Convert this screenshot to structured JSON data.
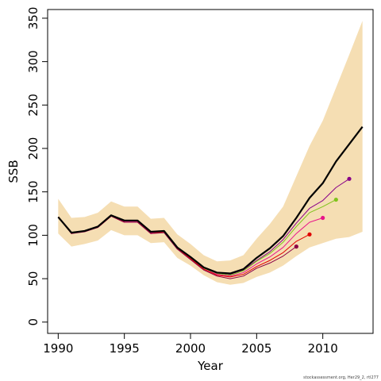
{
  "chart_data": {
    "type": "line",
    "title": "",
    "xlabel": "Year",
    "ylabel": "SSB",
    "xlim": [
      1989.2,
      2013.8
    ],
    "ylim": [
      -13,
      360
    ],
    "x_ticks": [
      1990,
      1995,
      2000,
      2005,
      2010
    ],
    "y_ticks": [
      0,
      50,
      100,
      150,
      200,
      250,
      300,
      350
    ],
    "grid": false,
    "legend": "none",
    "credit": "stockassessment.org, Her29_2, rtl277",
    "band": {
      "color": "#f5deb3",
      "x": [
        1990,
        1991,
        1992,
        1993,
        1994,
        1995,
        1996,
        1997,
        1998,
        1999,
        2000,
        2001,
        2002,
        2003,
        2004,
        2005,
        2006,
        2007,
        2008,
        2009,
        2010,
        2011,
        2012,
        2013
      ],
      "upper": [
        142,
        120,
        121,
        126,
        139,
        133,
        133,
        119,
        120,
        101,
        90,
        77,
        70,
        71,
        77,
        96,
        113,
        133,
        168,
        203,
        232,
        270,
        308,
        347
      ],
      "lower": [
        102,
        87,
        90,
        94,
        106,
        100,
        100,
        91,
        92,
        74,
        65,
        54,
        46,
        43,
        45,
        52,
        57,
        65,
        76,
        86,
        91,
        96,
        98,
        104
      ]
    },
    "series": [
      {
        "color": "#000000",
        "width": 2.2,
        "end_marker": false,
        "x": [
          1990,
          1991,
          1992,
          1993,
          1994,
          1995,
          1996,
          1997,
          1998,
          1999,
          2000,
          2001,
          2002,
          2003,
          2004,
          2005,
          2006,
          2007,
          2008,
          2009,
          2010,
          2011,
          2012,
          2013
        ],
        "values": [
          121,
          103,
          105,
          110,
          123,
          117,
          117,
          104,
          105,
          86,
          75,
          63,
          57,
          56,
          61,
          74,
          85,
          99,
          120,
          143,
          160,
          185,
          205,
          225
        ]
      },
      {
        "color": "#880088",
        "width": 1,
        "end_marker": true,
        "x": [
          1990,
          1991,
          1992,
          1993,
          1994,
          1995,
          1996,
          1997,
          1998,
          1999,
          2000,
          2001,
          2002,
          2003,
          2004,
          2005,
          2006,
          2007,
          2008,
          2009,
          2010,
          2011,
          2012
        ],
        "values": [
          121,
          103,
          105,
          110,
          123,
          117,
          117,
          104,
          105,
          86,
          74,
          63,
          57,
          55,
          60,
          71,
          81,
          95,
          114,
          131,
          140,
          155,
          165
        ]
      },
      {
        "color": "#7fc31c",
        "width": 1,
        "end_marker": true,
        "x": [
          1990,
          1991,
          1992,
          1993,
          1994,
          1995,
          1996,
          1997,
          1998,
          1999,
          2000,
          2001,
          2002,
          2003,
          2004,
          2005,
          2006,
          2007,
          2008,
          2009,
          2010,
          2011
        ],
        "values": [
          121,
          103,
          105,
          110,
          123,
          117,
          116,
          103,
          104,
          86,
          74,
          62,
          56,
          54,
          59,
          70,
          79,
          92,
          110,
          126,
          133,
          141
        ]
      },
      {
        "color": "#e8158a",
        "width": 1,
        "end_marker": true,
        "x": [
          1990,
          1991,
          1992,
          1993,
          1994,
          1995,
          1996,
          1997,
          1998,
          1999,
          2000,
          2001,
          2002,
          2003,
          2004,
          2005,
          2006,
          2007,
          2008,
          2009,
          2010
        ],
        "values": [
          121,
          102,
          105,
          110,
          122,
          116,
          116,
          103,
          104,
          85,
          73,
          61,
          55,
          53,
          57,
          67,
          75,
          86,
          102,
          115,
          120
        ]
      },
      {
        "color": "#e00000",
        "width": 1,
        "end_marker": true,
        "x": [
          1990,
          1991,
          1992,
          1993,
          1994,
          1995,
          1996,
          1997,
          1998,
          1999,
          2000,
          2001,
          2002,
          2003,
          2004,
          2005,
          2006,
          2007,
          2008,
          2009
        ],
        "values": [
          121,
          102,
          105,
          109,
          122,
          115,
          115,
          102,
          104,
          85,
          73,
          61,
          54,
          52,
          55,
          64,
          71,
          80,
          93,
          101
        ]
      },
      {
        "color": "#8b0045",
        "width": 1,
        "end_marker": true,
        "x": [
          1990,
          1991,
          1992,
          1993,
          1994,
          1995,
          1996,
          1997,
          1998,
          1999,
          2000,
          2001,
          2002,
          2003,
          2004,
          2005,
          2006,
          2007,
          2008
        ],
        "values": [
          121,
          102,
          104,
          109,
          122,
          115,
          115,
          102,
          103,
          84,
          72,
          60,
          53,
          50,
          53,
          62,
          68,
          76,
          87
        ]
      }
    ]
  }
}
